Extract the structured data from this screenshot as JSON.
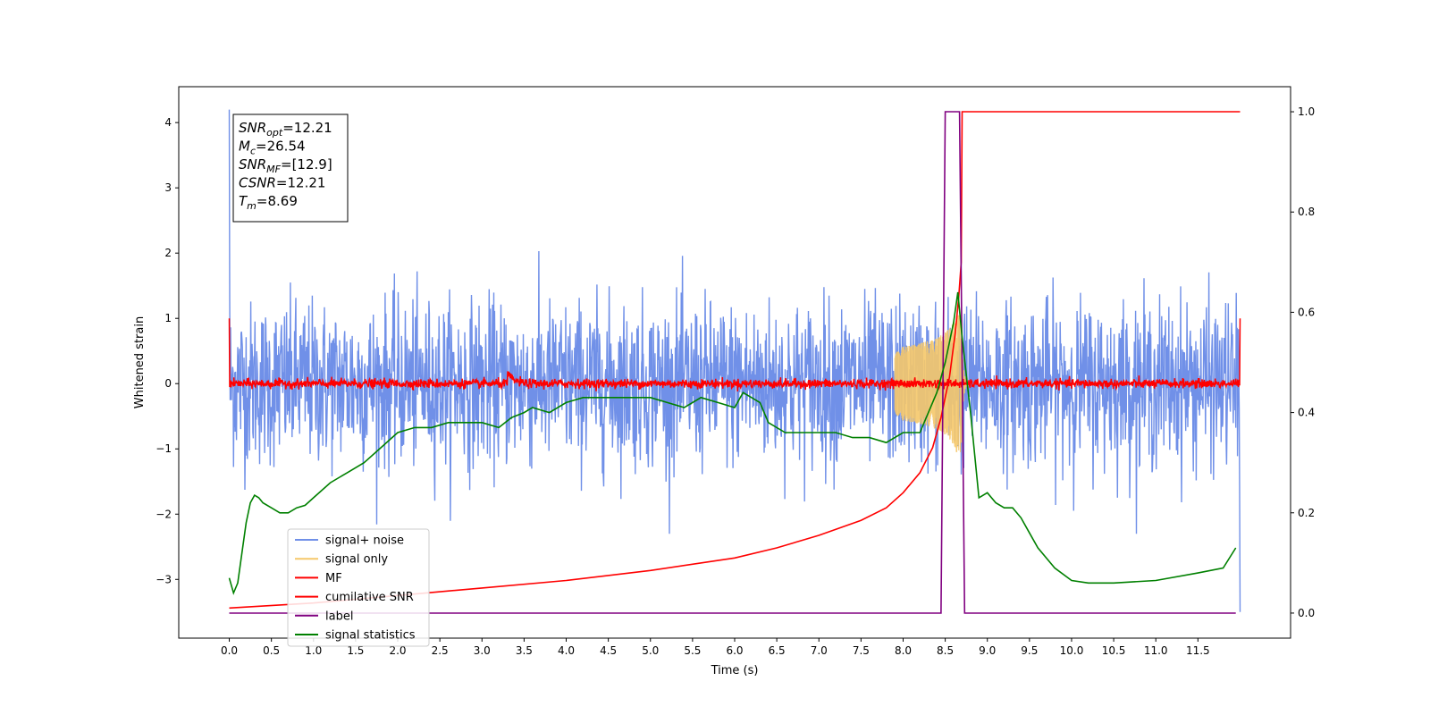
{
  "chart_data": {
    "type": "line",
    "xlabel": "Time (s)",
    "ylabel": "Whitened strain",
    "xlim": [
      -0.6,
      12.6
    ],
    "ylim": [
      -3.9,
      4.55
    ],
    "y2lim": [
      -0.05,
      1.05
    ],
    "x_ticks": [
      "0.0",
      "0.5",
      "1.0",
      "1.5",
      "2.0",
      "2.5",
      "3.0",
      "3.5",
      "4.0",
      "4.5",
      "5.0",
      "5.5",
      "6.0",
      "6.5",
      "7.0",
      "7.5",
      "8.0",
      "8.5",
      "9.0",
      "9.5",
      "10.0",
      "10.5",
      "11.0",
      "11.5"
    ],
    "y_ticks": [
      "4",
      "3",
      "2",
      "1",
      "0",
      "−1",
      "−2",
      "−3"
    ],
    "y2_ticks": [
      "1.0",
      "0.8",
      "0.6",
      "0.4",
      "0.2",
      "0.0"
    ],
    "grid": false,
    "legend_position": "lower-left",
    "annotation": {
      "lines": [
        {
          "var": "SNR",
          "sub": "opt",
          "value": "=12.21"
        },
        {
          "var": "M",
          "sub": "c",
          "value": "=26.54"
        },
        {
          "var": "SNR",
          "sub": "MF",
          "value": "=[12.9]"
        },
        {
          "var": "CSNR",
          "sub": "",
          "value": "=12.21"
        },
        {
          "var": "T",
          "sub": "m",
          "value": "=8.69"
        }
      ]
    },
    "series": [
      {
        "name": "signal+ noise",
        "color": "#7090e8",
        "axis": "left",
        "kind": "noise",
        "noise_amp": 1.15,
        "x_start": 0.0,
        "x_end": 12.0
      },
      {
        "name": "signal only",
        "color": "#f5c86a",
        "axis": "left",
        "kind": "chirp",
        "merger_time": 8.69
      },
      {
        "name": "MF",
        "color": "#ff0000",
        "axis": "left",
        "kind": "mf",
        "noise_amp": 0.07,
        "edge_value": 1.0
      },
      {
        "name": "cumilative SNR",
        "color": "#ff0000",
        "axis": "right",
        "x": [
          0.0,
          1.0,
          2.0,
          3.0,
          4.0,
          5.0,
          6.0,
          6.5,
          7.0,
          7.5,
          7.8,
          8.0,
          8.2,
          8.35,
          8.45,
          8.55,
          8.62,
          8.66,
          8.69,
          8.7,
          12.0
        ],
        "values": [
          0.01,
          0.02,
          0.035,
          0.05,
          0.065,
          0.085,
          0.11,
          0.13,
          0.155,
          0.185,
          0.21,
          0.24,
          0.28,
          0.33,
          0.39,
          0.47,
          0.56,
          0.63,
          0.7,
          1.0,
          1.0
        ]
      },
      {
        "name": "label",
        "color": "#800080",
        "axis": "right",
        "x": [
          0.0,
          8.45,
          8.5,
          8.67,
          8.73,
          11.95
        ],
        "values": [
          0.0,
          0.0,
          1.0,
          1.0,
          0.0,
          0.0
        ]
      },
      {
        "name": "signal statistics",
        "color": "#008000",
        "axis": "right",
        "x": [
          0.0,
          0.05,
          0.1,
          0.15,
          0.2,
          0.25,
          0.3,
          0.35,
          0.4,
          0.5,
          0.6,
          0.7,
          0.8,
          0.9,
          1.0,
          1.2,
          1.4,
          1.6,
          1.8,
          2.0,
          2.2,
          2.4,
          2.6,
          2.8,
          3.0,
          3.2,
          3.35,
          3.5,
          3.6,
          3.8,
          4.0,
          4.2,
          4.5,
          4.8,
          5.0,
          5.2,
          5.4,
          5.6,
          5.8,
          6.0,
          6.1,
          6.3,
          6.4,
          6.6,
          6.8,
          7.0,
          7.2,
          7.4,
          7.6,
          7.8,
          8.0,
          8.2,
          8.4,
          8.5,
          8.6,
          8.65,
          8.7,
          8.8,
          8.9,
          9.0,
          9.1,
          9.2,
          9.3,
          9.4,
          9.5,
          9.6,
          9.8,
          10.0,
          10.2,
          10.5,
          11.0,
          11.5,
          11.8,
          11.95
        ],
        "values": [
          0.07,
          0.04,
          0.06,
          0.12,
          0.18,
          0.22,
          0.235,
          0.23,
          0.22,
          0.21,
          0.2,
          0.2,
          0.21,
          0.215,
          0.23,
          0.26,
          0.28,
          0.3,
          0.33,
          0.36,
          0.37,
          0.37,
          0.38,
          0.38,
          0.38,
          0.37,
          0.39,
          0.4,
          0.41,
          0.4,
          0.42,
          0.43,
          0.43,
          0.43,
          0.43,
          0.42,
          0.41,
          0.43,
          0.42,
          0.41,
          0.44,
          0.42,
          0.38,
          0.36,
          0.36,
          0.36,
          0.36,
          0.35,
          0.35,
          0.34,
          0.36,
          0.36,
          0.44,
          0.5,
          0.58,
          0.64,
          0.55,
          0.4,
          0.23,
          0.24,
          0.22,
          0.21,
          0.21,
          0.19,
          0.16,
          0.13,
          0.09,
          0.065,
          0.06,
          0.06,
          0.065,
          0.08,
          0.09,
          0.13
        ]
      }
    ]
  }
}
